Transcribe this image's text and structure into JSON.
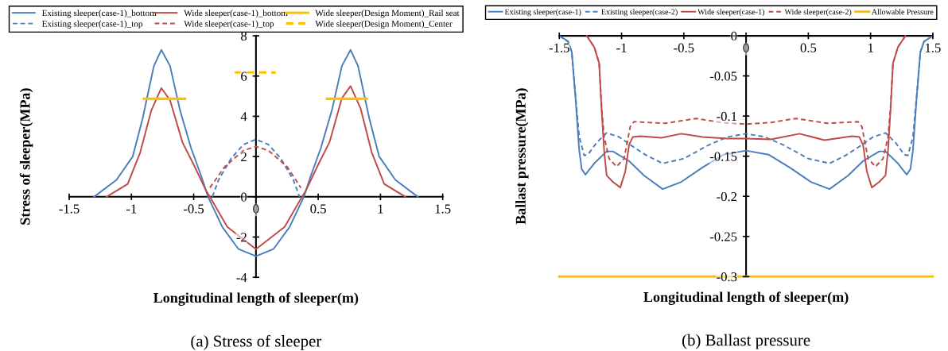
{
  "chart_data": [
    {
      "type": "line",
      "title": "(a) Stress of sleeper",
      "xlabel": "Longitudinal length of sleeper(m)",
      "ylabel": "Stress of sleeper(MPa)",
      "xlim": [
        -1.5,
        1.5
      ],
      "ylim": [
        -4,
        8
      ],
      "xticks": [
        -1.5,
        -1,
        -0.5,
        0,
        0.5,
        1,
        1.5
      ],
      "yticks": [
        -4,
        -2,
        0,
        2,
        4,
        6,
        8
      ],
      "legend": "top",
      "grid": false,
      "series": [
        {
          "name": "Existing sleeper(case-1)_bottom",
          "color": "#4a7ebb",
          "line_style": "solid",
          "x": [
            -1.3,
            -1.12,
            -0.99,
            -0.91,
            -0.82,
            -0.76,
            -0.69,
            -0.61,
            -0.52,
            -0.44,
            -0.385,
            -0.27,
            -0.14,
            0,
            0.14,
            0.27,
            0.385,
            0.44,
            0.52,
            0.61,
            0.69,
            0.76,
            0.82,
            0.91,
            0.99,
            1.12,
            1.3
          ],
          "values": [
            0,
            0.84,
            2.0,
            3.9,
            6.5,
            7.3,
            6.5,
            4.3,
            2.4,
            1.04,
            0,
            -1.5,
            -2.6,
            -2.95,
            -2.6,
            -1.5,
            0,
            1.04,
            2.4,
            4.3,
            6.5,
            7.3,
            6.5,
            3.9,
            2.0,
            0.84,
            0
          ]
        },
        {
          "name": "Existing sleeper(case-1)_top",
          "color": "#4a7ebb",
          "line_style": "dashed",
          "x": [
            -0.35,
            -0.3,
            -0.2,
            -0.1,
            0,
            0.1,
            0.2,
            0.3,
            0.35
          ],
          "values": [
            0,
            0.84,
            1.9,
            2.6,
            2.85,
            2.6,
            1.9,
            0.84,
            0
          ]
        },
        {
          "name": "Wide sleeper(case-1)_bottom",
          "color": "#be4b48",
          "line_style": "solid",
          "x": [
            -1.2,
            -1.03,
            -0.93,
            -0.84,
            -0.76,
            -0.69,
            -0.59,
            -0.5,
            -0.4,
            -0.37,
            -0.23,
            0,
            0.23,
            0.37,
            0.4,
            0.5,
            0.59,
            0.69,
            0.76,
            0.84,
            0.93,
            1.03,
            1.2
          ],
          "values": [
            0,
            0.64,
            2.2,
            4.3,
            5.4,
            4.8,
            2.7,
            1.6,
            0.3,
            0,
            -1.5,
            -2.6,
            -1.5,
            0,
            0.3,
            1.6,
            2.7,
            4.9,
            5.5,
            4.4,
            2.2,
            0.64,
            0
          ]
        },
        {
          "name": "Wide sleeper(case-1)_top",
          "color": "#be4b48",
          "line_style": "dashed",
          "x": [
            -0.37,
            -0.25,
            -0.1,
            0,
            0.1,
            0.25,
            0.36
          ],
          "values": [
            0.45,
            1.5,
            2.3,
            2.5,
            2.3,
            1.5,
            0.45
          ]
        },
        {
          "name": "Wide sleeper(Design Moment)_Rail seat",
          "color": "#ffc000",
          "line_style": "solid",
          "x": [
            -0.9,
            -0.57,
            0,
            0.57,
            0.89
          ],
          "values": [
            4.87,
            4.87,
            null,
            4.87,
            4.87
          ]
        },
        {
          "name": "Wide sleeper(Design Moment)_Center",
          "color": "#ffc000",
          "line_style": "dashed",
          "x": [
            -0.17,
            0.16
          ],
          "values": [
            6.18,
            6.18
          ]
        }
      ]
    },
    {
      "type": "line",
      "title": "(b) Ballast pressure",
      "xlabel": "Longitudinal length of sleeper(m)",
      "ylabel": "Ballast pressure(MPa)",
      "xlim": [
        -1.5,
        1.5
      ],
      "ylim": [
        -0.3,
        0
      ],
      "xticks": [
        -1.5,
        -1,
        -0.5,
        0,
        0.5,
        1,
        1.5
      ],
      "yticks": [
        -0.3,
        -0.25,
        -0.2,
        -0.15,
        -0.1,
        -0.05,
        0
      ],
      "legend": "top",
      "grid": false,
      "series": [
        {
          "name": "Existing sleeper(case-1)",
          "color": "#4a7ebb",
          "line_style": "solid",
          "x": [
            -1.5,
            -1.43,
            -1.4,
            -1.37,
            -1.34,
            -1.32,
            -1.29,
            -1.22,
            -1.12,
            -1.07,
            -0.94,
            -0.82,
            -0.67,
            -0.52,
            -0.35,
            -0.18,
            0,
            0.18,
            0.35,
            0.52,
            0.67,
            0.82,
            0.94,
            1.07,
            1.12,
            1.22,
            1.29,
            1.32,
            1.34,
            1.37,
            1.4,
            1.43,
            1.5
          ],
          "values": [
            0,
            -0.007,
            -0.02,
            -0.077,
            -0.143,
            -0.166,
            -0.173,
            -0.159,
            -0.144,
            -0.144,
            -0.156,
            -0.174,
            -0.191,
            -0.182,
            -0.164,
            -0.148,
            -0.143,
            -0.148,
            -0.164,
            -0.182,
            -0.191,
            -0.174,
            -0.156,
            -0.144,
            -0.144,
            -0.159,
            -0.173,
            -0.166,
            -0.143,
            -0.077,
            -0.02,
            -0.007,
            0
          ]
        },
        {
          "name": "Existing sleeper(case-2)",
          "color": "#4a7ebb",
          "line_style": "dashed",
          "x": [
            -1.5,
            -1.43,
            -1.4,
            -1.37,
            -1.34,
            -1.3,
            -1.27,
            -1.2,
            -1.12,
            -1.02,
            -0.9,
            -0.8,
            -0.67,
            -0.5,
            -0.3,
            -0.15,
            0,
            0.15,
            0.3,
            0.5,
            0.67,
            0.8,
            0.9,
            1.02,
            1.12,
            1.2,
            1.27,
            1.3,
            1.34,
            1.37,
            1.4,
            1.43,
            1.5
          ],
          "values": [
            0,
            -0.007,
            -0.02,
            -0.075,
            -0.126,
            -0.149,
            -0.148,
            -0.133,
            -0.121,
            -0.126,
            -0.139,
            -0.149,
            -0.159,
            -0.153,
            -0.136,
            -0.126,
            -0.122,
            -0.126,
            -0.136,
            -0.153,
            -0.159,
            -0.149,
            -0.139,
            -0.126,
            -0.121,
            -0.133,
            -0.148,
            -0.149,
            -0.126,
            -0.075,
            -0.02,
            -0.007,
            0
          ]
        },
        {
          "name": "Wide sleeper(case-1)",
          "color": "#be4b48",
          "line_style": "solid",
          "x": [
            -1.28,
            -1.22,
            -1.18,
            -1.16,
            -1.14,
            -1.12,
            -1.07,
            -1.01,
            -0.97,
            -0.94,
            -0.91,
            -0.85,
            -0.68,
            -0.52,
            -0.35,
            -0.15,
            0,
            0.2,
            0.43,
            0.63,
            0.85,
            0.91,
            0.94,
            0.97,
            1.01,
            1.07,
            1.12,
            1.14,
            1.16,
            1.18,
            1.22,
            1.28
          ],
          "values": [
            0,
            -0.014,
            -0.034,
            -0.093,
            -0.143,
            -0.174,
            -0.182,
            -0.189,
            -0.169,
            -0.136,
            -0.126,
            -0.125,
            -0.127,
            -0.122,
            -0.126,
            -0.128,
            -0.128,
            -0.129,
            -0.122,
            -0.13,
            -0.125,
            -0.126,
            -0.136,
            -0.169,
            -0.189,
            -0.182,
            -0.174,
            -0.143,
            -0.093,
            -0.034,
            -0.014,
            0
          ]
        },
        {
          "name": "Wide sleeper(case-2)",
          "color": "#be4b48",
          "line_style": "dashed",
          "x": [
            -1.28,
            -1.22,
            -1.18,
            -1.16,
            -1.14,
            -1.1,
            -1.04,
            -0.98,
            -0.93,
            -0.9,
            -0.65,
            -0.4,
            -0.2,
            0,
            0.2,
            0.4,
            0.65,
            0.9,
            0.93,
            0.98,
            1.04,
            1.1,
            1.14,
            1.16,
            1.18,
            1.22,
            1.28
          ],
          "values": [
            0,
            -0.014,
            -0.034,
            -0.09,
            -0.126,
            -0.153,
            -0.163,
            -0.153,
            -0.113,
            -0.107,
            -0.109,
            -0.103,
            -0.108,
            -0.11,
            -0.108,
            -0.103,
            -0.109,
            -0.107,
            -0.113,
            -0.153,
            -0.163,
            -0.153,
            -0.126,
            -0.09,
            -0.034,
            -0.014,
            0
          ]
        },
        {
          "name": "Allowable Pressure",
          "color": "#ffc000",
          "line_style": "solid",
          "x": [
            -1.5,
            1.5
          ],
          "values": [
            -0.3,
            -0.3
          ]
        }
      ]
    }
  ]
}
